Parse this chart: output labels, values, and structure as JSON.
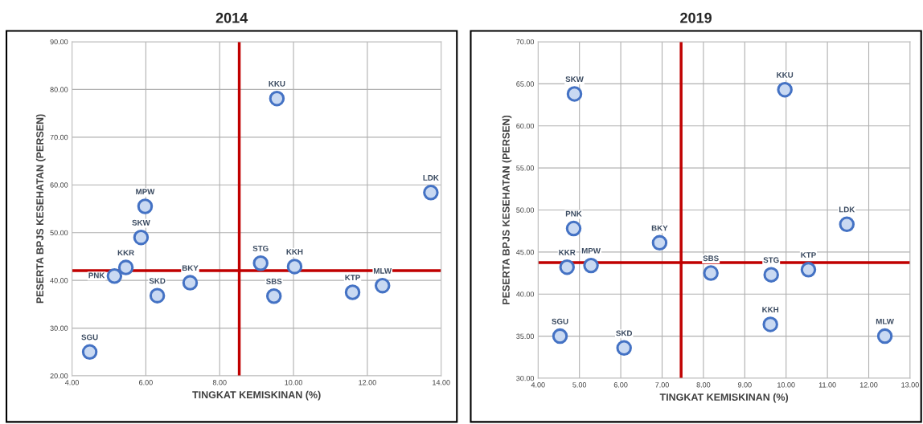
{
  "chart_data": [
    {
      "type": "scatter",
      "title": "2014",
      "xlabel": "TINGKAT KEMISKINAN (%)",
      "ylabel": "PESERTA BPJS KESEHATAN (PERSEN)",
      "series": [
        {
          "color": "#4472c4",
          "x": [
            4.48,
            5.15,
            5.46,
            5.87,
            5.98,
            6.31,
            7.2,
            9.11,
            10.03,
            9.47,
            9.55,
            11.6,
            12.41,
            13.72
          ],
          "values": [
            25.0,
            40.9,
            42.7,
            49.0,
            55.5,
            36.8,
            39.5,
            43.6,
            42.9,
            36.7,
            78.1,
            37.5,
            38.9,
            58.4
          ]
        }
      ],
      "annotations": [
        {
          "text": "SGU",
          "x": 4.48,
          "y": 25.0
        },
        {
          "text": "PNK",
          "x": 5.15,
          "y": 40.9
        },
        {
          "text": "KKR",
          "x": 5.46,
          "y": 42.7
        },
        {
          "text": "SKW",
          "x": 5.87,
          "y": 49.0
        },
        {
          "text": "MPW",
          "x": 5.98,
          "y": 55.5
        },
        {
          "text": "SKD",
          "x": 6.31,
          "y": 36.8
        },
        {
          "text": "BKY",
          "x": 7.2,
          "y": 39.5
        },
        {
          "text": "STG",
          "x": 9.11,
          "y": 43.6
        },
        {
          "text": "KKH",
          "x": 10.03,
          "y": 42.9
        },
        {
          "text": "SBS",
          "x": 9.47,
          "y": 36.7
        },
        {
          "text": "KKU",
          "x": 9.55,
          "y": 78.1
        },
        {
          "text": "KTP",
          "x": 11.6,
          "y": 37.5
        },
        {
          "text": "MLW",
          "x": 12.41,
          "y": 38.9
        },
        {
          "text": "LDK",
          "x": 13.72,
          "y": 58.4
        }
      ],
      "ref_lines": [
        {
          "axis": "x",
          "value": 8.53,
          "color": "#c00000"
        },
        {
          "axis": "y",
          "value": 42.05,
          "color": "#c00000"
        }
      ],
      "xlim": [
        4,
        14
      ],
      "xticks": [
        {
          "value": 4,
          "label": "4.00"
        },
        {
          "value": 6,
          "label": "6.00"
        },
        {
          "value": 8,
          "label": "8.00"
        },
        {
          "value": 10,
          "label": "10.00"
        },
        {
          "value": 12,
          "label": "12.00"
        },
        {
          "value": 14,
          "label": "14.00"
        }
      ],
      "ylim": [
        20,
        90
      ],
      "yticks": [
        {
          "value": 20,
          "label": "20.00"
        },
        {
          "value": 30,
          "label": "30.00"
        },
        {
          "value": 40,
          "label": "40.00"
        },
        {
          "value": 50,
          "label": "50.00"
        },
        {
          "value": 60,
          "label": "60.00"
        },
        {
          "value": 70,
          "label": "70.00"
        },
        {
          "value": 80,
          "label": "80.00"
        },
        {
          "value": 90,
          "label": "90.00"
        }
      ],
      "grid": true,
      "marker": "circle"
    },
    {
      "type": "scatter",
      "title": "2019",
      "xlabel": "TINGKAT KEMISKINAN (%)",
      "ylabel": "PESERTA BPJS KESEHATAN (PERSEN)",
      "series": [
        {
          "color": "#4472c4",
          "x": [
            4.88,
            4.86,
            4.7,
            5.28,
            4.53,
            6.08,
            6.94,
            8.18,
            9.64,
            10.54,
            9.62,
            9.97,
            11.47,
            12.39
          ],
          "values": [
            63.8,
            47.8,
            43.2,
            43.4,
            35.0,
            33.6,
            46.1,
            42.5,
            42.3,
            42.9,
            36.4,
            64.3,
            48.3,
            35.0
          ]
        }
      ],
      "annotations": [
        {
          "text": "SKW",
          "x": 4.88,
          "y": 63.8
        },
        {
          "text": "PNK",
          "x": 4.86,
          "y": 47.8
        },
        {
          "text": "KKR",
          "x": 4.7,
          "y": 43.2
        },
        {
          "text": "MPW",
          "x": 5.28,
          "y": 43.4
        },
        {
          "text": "SGU",
          "x": 4.53,
          "y": 35.0
        },
        {
          "text": "SKD",
          "x": 6.08,
          "y": 33.6
        },
        {
          "text": "BKY",
          "x": 6.94,
          "y": 46.1
        },
        {
          "text": "SBS",
          "x": 8.18,
          "y": 42.5
        },
        {
          "text": "STG",
          "x": 9.64,
          "y": 42.3
        },
        {
          "text": "KTP",
          "x": 10.54,
          "y": 42.9
        },
        {
          "text": "KKH",
          "x": 9.62,
          "y": 36.4
        },
        {
          "text": "KKU",
          "x": 9.97,
          "y": 64.3
        },
        {
          "text": "LDK",
          "x": 11.47,
          "y": 48.3
        },
        {
          "text": "MLW",
          "x": 12.39,
          "y": 35.0
        }
      ],
      "ref_lines": [
        {
          "axis": "x",
          "value": 7.46,
          "color": "#c00000"
        },
        {
          "axis": "y",
          "value": 43.75,
          "color": "#c00000"
        }
      ],
      "xlim": [
        4,
        13
      ],
      "xticks": [
        {
          "value": 4,
          "label": "4.00"
        },
        {
          "value": 5,
          "label": "5.00"
        },
        {
          "value": 6,
          "label": "6.00"
        },
        {
          "value": 7,
          "label": "7.00"
        },
        {
          "value": 8,
          "label": "8.00"
        },
        {
          "value": 9,
          "label": "9.00"
        },
        {
          "value": 10,
          "label": "10.00"
        },
        {
          "value": 11,
          "label": "11.00"
        },
        {
          "value": 12,
          "label": "12.00"
        },
        {
          "value": 13,
          "label": "13.00"
        }
      ],
      "ylim": [
        30,
        70
      ],
      "yticks": [
        {
          "value": 30,
          "label": "30.00"
        },
        {
          "value": 35,
          "label": "35.00"
        },
        {
          "value": 40,
          "label": "40.00"
        },
        {
          "value": 45,
          "label": "45.00"
        },
        {
          "value": 50,
          "label": "50.00"
        },
        {
          "value": 55,
          "label": "55.00"
        },
        {
          "value": 60,
          "label": "60.00"
        },
        {
          "value": 65,
          "label": "65.00"
        },
        {
          "value": 70,
          "label": "70.00"
        }
      ],
      "grid": true,
      "marker": "circle"
    }
  ]
}
